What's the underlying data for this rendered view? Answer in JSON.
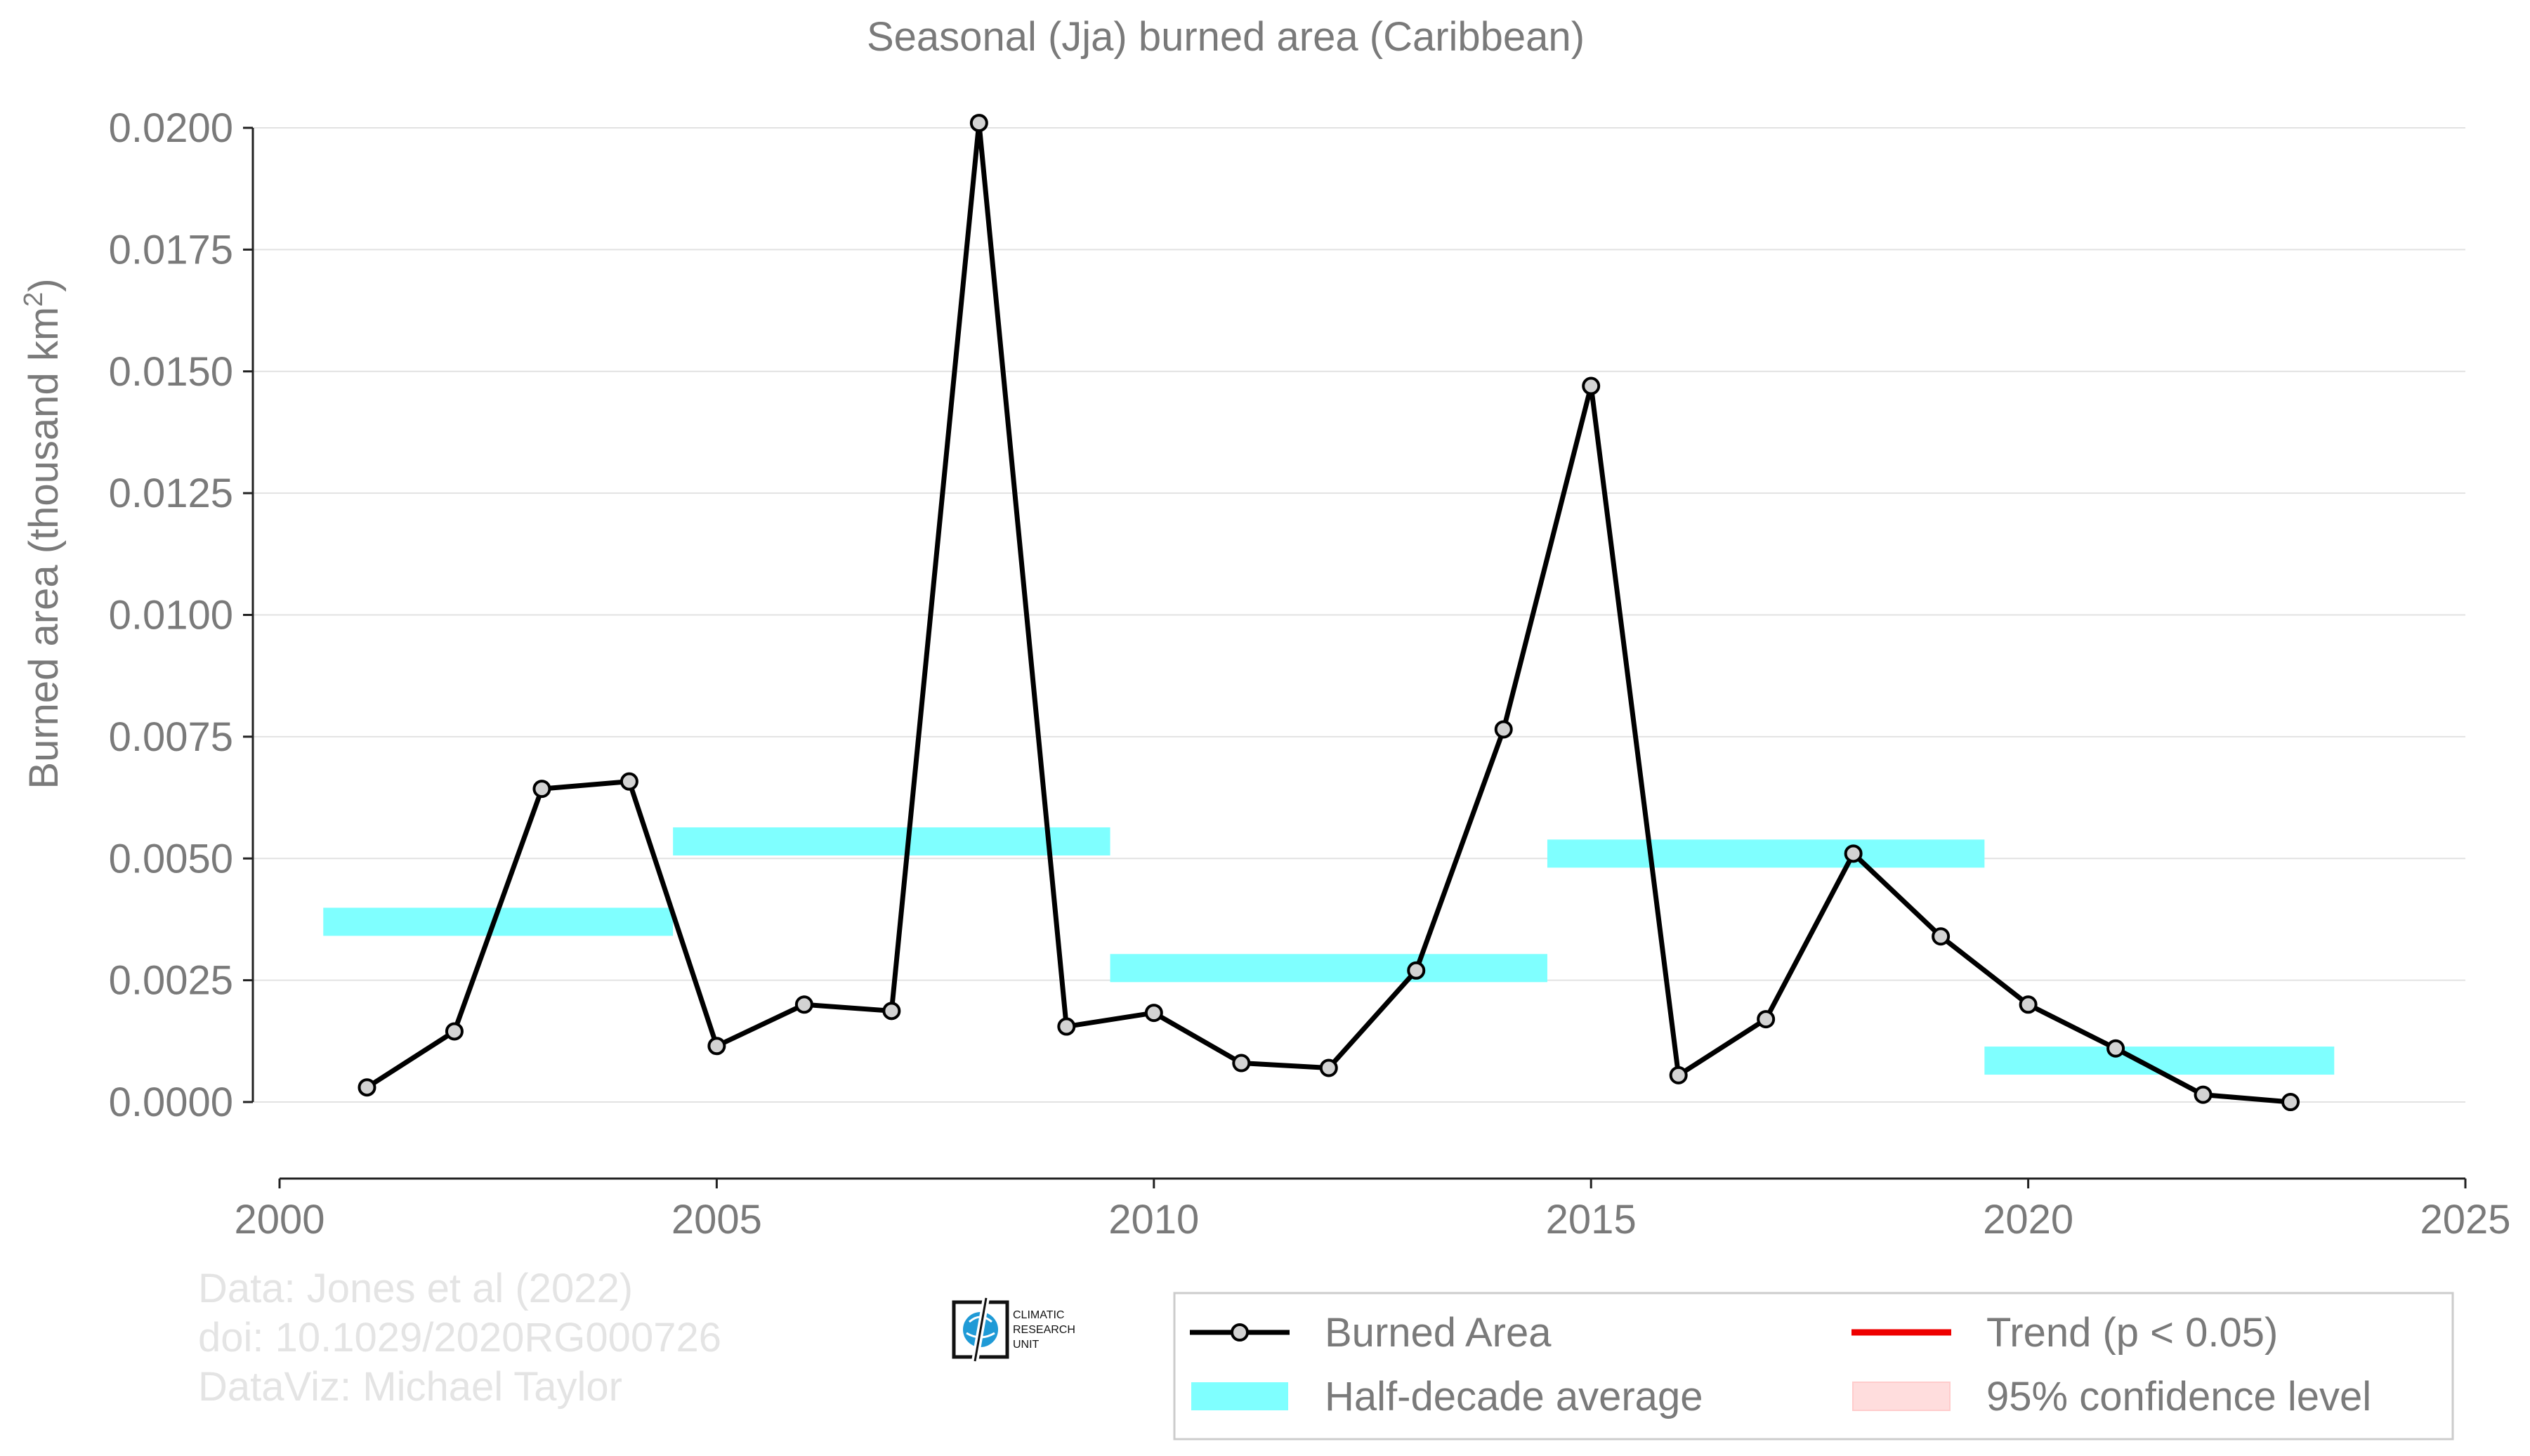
{
  "chart_data": {
    "type": "line",
    "title": "Seasonal (Jja) burned area (Caribbean)",
    "xlabel": "",
    "ylabel_main": "Burned area (thousand km",
    "ylabel_sup": "2",
    "ylabel_close": ")",
    "xlim": [
      2000,
      2025
    ],
    "ylim": [
      -0.0008,
      0.0202
    ],
    "xticks": [
      2000,
      2005,
      2010,
      2015,
      2020,
      2025
    ],
    "yticks": [
      0.0,
      0.0025,
      0.005,
      0.0075,
      0.01,
      0.0125,
      0.015,
      0.0175,
      0.02
    ],
    "ytick_labels": [
      "0.0000",
      "0.0025",
      "0.0050",
      "0.0075",
      "0.0100",
      "0.0125",
      "0.0150",
      "0.0175",
      "0.0200"
    ],
    "grid": "horizontal",
    "series": [
      {
        "name": "Burned Area",
        "x": [
          2001,
          2002,
          2003,
          2004,
          2005,
          2006,
          2007,
          2008,
          2009,
          2010,
          2011,
          2012,
          2013,
          2014,
          2015,
          2016,
          2017,
          2018,
          2019,
          2020,
          2021,
          2022,
          2023
        ],
        "y": [
          0.0003,
          0.00145,
          0.00643,
          0.00658,
          0.00115,
          0.002,
          0.00187,
          0.0201,
          0.00155,
          0.00183,
          0.0008,
          0.0007,
          0.0027,
          0.00765,
          0.0147,
          0.00055,
          0.0017,
          0.0051,
          0.0034,
          0.002,
          0.0011,
          0.00015,
          0.0
        ]
      }
    ],
    "half_decade_average": [
      {
        "x0": 2000.5,
        "x1": 2004.5,
        "y": 0.0037
      },
      {
        "x0": 2004.5,
        "x1": 2009.5,
        "y": 0.00535
      },
      {
        "x0": 2009.5,
        "x1": 2014.5,
        "y": 0.00275
      },
      {
        "x0": 2014.5,
        "x1": 2019.5,
        "y": 0.0051
      },
      {
        "x0": 2019.5,
        "x1": 2023.5,
        "y": 0.00085
      }
    ],
    "legend": {
      "placement": "bottom-right",
      "entries": [
        "Burned Area",
        "Half-decade average",
        "Trend (p < 0.05)",
        "95% confidence level"
      ]
    },
    "colors": {
      "line": "#000000",
      "marker_fill": "#d3d3d3",
      "half_decade": "#7fffff",
      "trend": "#ee0000",
      "ci": "#ffdddd",
      "text": "#7a7a7a",
      "grid": "#e2e2e2"
    }
  },
  "credits": {
    "line1": "Data: Jones et al (2022)",
    "line2": "doi: 10.1029/2020RG000726",
    "line3": "DataViz: Michael Taylor"
  },
  "logo": {
    "text1": "CLIMATIC",
    "text2": "RESEARCH",
    "text3": "UNIT"
  }
}
